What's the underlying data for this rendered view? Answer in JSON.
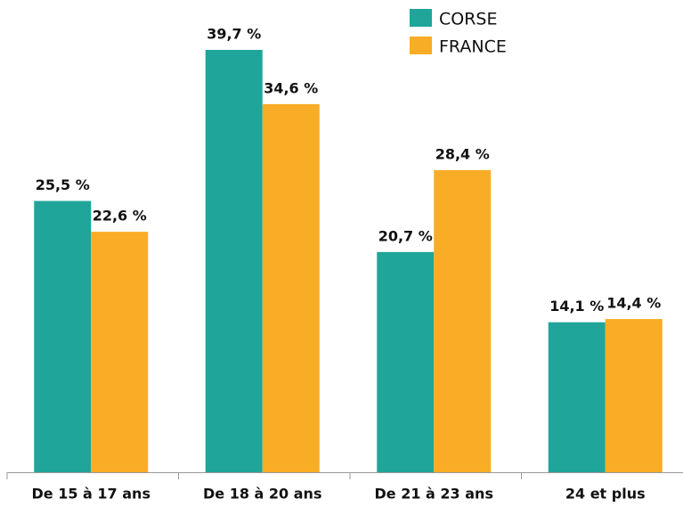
{
  "chart_data": {
    "type": "bar",
    "categories": [
      "De 15 à 17 ans",
      "De 18 à 20 ans",
      "De 21 à 23 ans",
      "24 et plus"
    ],
    "series": [
      {
        "name": "CORSE",
        "color": "#1fa59a",
        "values": [
          25.5,
          39.7,
          20.7,
          14.1
        ],
        "value_labels": [
          "25,5 %",
          "39,7 %",
          "20,7 %",
          "14,1 %"
        ]
      },
      {
        "name": "FRANCE",
        "color": "#f9ac25",
        "values": [
          22.6,
          34.6,
          28.4,
          14.4
        ],
        "value_labels": [
          "22,6 %",
          "34,6 %",
          "28,4 %",
          "14,4 %"
        ]
      }
    ],
    "legend": "top-right"
  }
}
